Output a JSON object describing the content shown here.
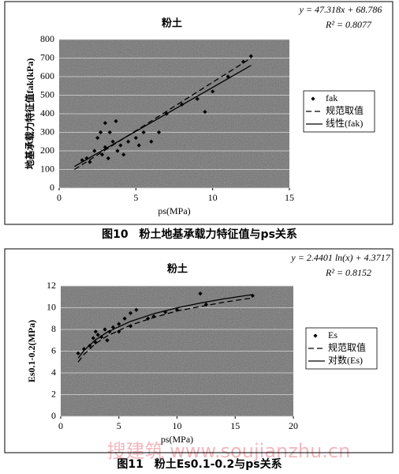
{
  "chart_data": [
    {
      "type": "scatter",
      "title": "粉土",
      "equation": "y = 47.318x + 68.786",
      "r_squared": "R² = 0.8077",
      "x_label": "ps(MPa)",
      "y_label": "地基承载力特征值fak(kPa)",
      "caption": "图10　粉土地基承载力特征值与ps关系",
      "xlim": [
        0,
        15
      ],
      "xticks": [
        0,
        5,
        10,
        15
      ],
      "ylim": [
        0,
        800
      ],
      "yticks": [
        0,
        100,
        200,
        300,
        400,
        500,
        600,
        700,
        800
      ],
      "grid": true,
      "series": [
        {
          "name": "fak",
          "mode": "markers",
          "color": "#000000",
          "x": [
            1.5,
            1.8,
            2,
            2.3,
            2.5,
            2.7,
            2.8,
            3,
            3,
            3.2,
            3.3,
            3.5,
            3.7,
            3.8,
            4,
            4.2,
            4.5,
            5,
            5.2,
            5.5,
            6,
            6.5,
            7,
            8,
            9,
            9.5,
            10,
            11,
            12,
            12.5
          ],
          "values": [
            150,
            160,
            140,
            200,
            270,
            300,
            180,
            350,
            220,
            160,
            300,
            250,
            360,
            200,
            230,
            180,
            250,
            270,
            230,
            300,
            250,
            300,
            400,
            450,
            480,
            410,
            520,
            600,
            680,
            710
          ]
        },
        {
          "name": "规范取值",
          "mode": "dashed",
          "color": "#000000",
          "x": [
            1,
            12.5
          ],
          "values": [
            100,
            700
          ]
        },
        {
          "name": "线性(fak)",
          "mode": "solid",
          "color": "#000000",
          "x": [
            1,
            12.5
          ],
          "values": [
            116.1,
            660.3
          ]
        }
      ]
    },
    {
      "type": "scatter",
      "title": "粉土",
      "equation": "y = 2.4401 ln(x) + 4.3717",
      "r_squared": "R² = 0.8152",
      "x_label": "ps(MPa)",
      "y_label": "Es0.1-0.2(MPa)",
      "caption": "图11　粉土Es0.1-0.2与ps关系",
      "xlim": [
        0,
        20
      ],
      "xticks": [
        0,
        5,
        10,
        15,
        20
      ],
      "ylim": [
        0,
        12
      ],
      "yticks": [
        0,
        2,
        4,
        6,
        8,
        10,
        12
      ],
      "grid": true,
      "series": [
        {
          "name": "Es",
          "mode": "markers",
          "color": "#000000",
          "x": [
            1.5,
            2,
            2.5,
            2.8,
            3,
            3,
            3.2,
            3.5,
            3.8,
            4,
            4.2,
            4.5,
            5,
            5,
            5.5,
            6,
            6,
            6.5,
            7.5,
            8,
            9,
            10,
            12,
            12.5,
            16.5
          ],
          "values": [
            5.8,
            6.2,
            6.5,
            7.2,
            7.8,
            6.8,
            7.5,
            7.3,
            8,
            7,
            7.8,
            8.2,
            8.5,
            7.8,
            9,
            9.5,
            8.3,
            9.8,
            9,
            9.2,
            9.6,
            9.8,
            11.3,
            10.3,
            11.1
          ]
        },
        {
          "name": "规范取值",
          "mode": "dashed",
          "color": "#000000",
          "x": [
            1.5,
            2,
            3,
            4,
            6,
            8,
            10,
            12,
            14,
            16.5
          ],
          "values": [
            5.0,
            5.7,
            6.7,
            7.4,
            8.4,
            9.1,
            9.7,
            10.1,
            10.5,
            10.9
          ]
        },
        {
          "name": "对数(Es)",
          "mode": "solid",
          "color": "#000000",
          "x": [
            1.5,
            2,
            3,
            4,
            6,
            8,
            10,
            12,
            14,
            16.5
          ],
          "values": [
            5.36,
            6.06,
            7.05,
            7.75,
            8.74,
            9.45,
            9.99,
            10.43,
            10.81,
            11.21
          ]
        }
      ]
    }
  ],
  "watermark": "搜建筑 www.soujianzhu.cn"
}
